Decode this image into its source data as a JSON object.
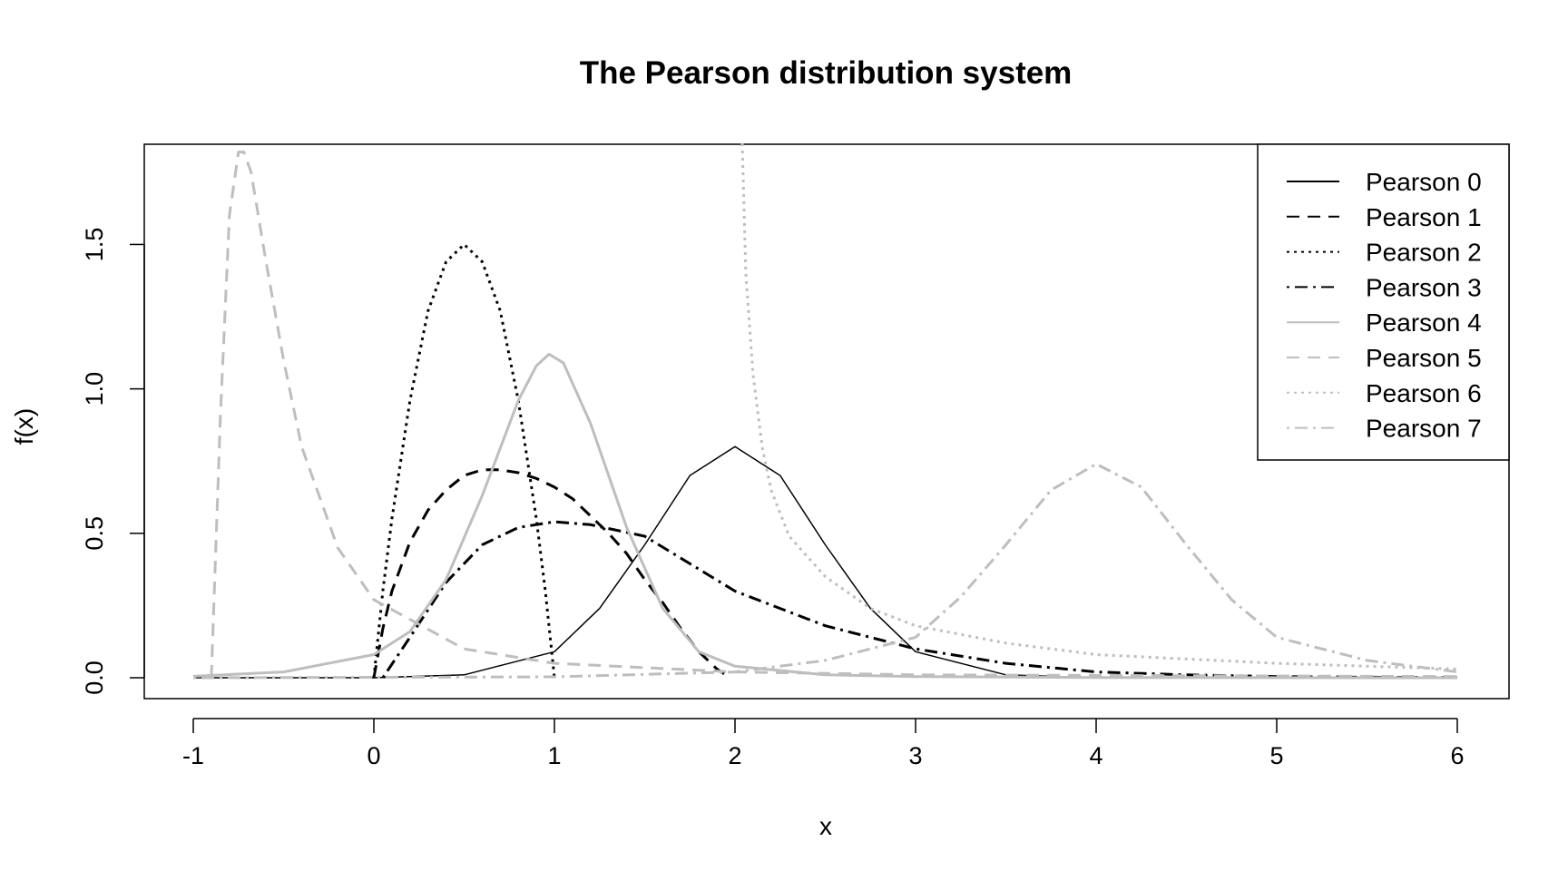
{
  "chart_data": {
    "type": "line",
    "title": "The Pearson distribution system",
    "xlabel": "x",
    "ylabel": "f(x)",
    "xlim": [
      -1,
      6
    ],
    "ylim": [
      0,
      1.85
    ],
    "x_ticks": [
      -1,
      0,
      1,
      2,
      3,
      4,
      5,
      6
    ],
    "y_ticks": [
      0.0,
      0.5,
      1.0,
      1.5
    ],
    "x_tick_labels": [
      "-1",
      "0",
      "1",
      "2",
      "3",
      "4",
      "5",
      "6"
    ],
    "y_tick_labels": [
      "0.0",
      "0.5",
      "1.0",
      "1.5"
    ],
    "grid": false,
    "legend_position": "top-right",
    "series": [
      {
        "name": "Pearson 0",
        "color": "#000000",
        "dash": "solid",
        "width": 1.5,
        "x": [
          -1,
          0,
          0.5,
          1,
          1.25,
          1.5,
          1.75,
          2,
          2.25,
          2.5,
          2.75,
          3,
          3.5,
          4,
          6
        ],
        "y": [
          0,
          0,
          0.01,
          0.09,
          0.24,
          0.46,
          0.7,
          0.8,
          0.7,
          0.46,
          0.24,
          0.09,
          0.01,
          0,
          0
        ]
      },
      {
        "name": "Pearson 1",
        "color": "#000000",
        "dash": "dashed",
        "width": 3,
        "x": [
          0,
          0.05,
          0.1,
          0.2,
          0.3,
          0.4,
          0.5,
          0.6,
          0.7,
          0.8,
          0.9,
          1.0,
          1.1,
          1.2,
          1.3,
          1.4,
          1.5,
          1.6,
          1.7,
          1.8,
          1.9,
          1.97
        ],
        "y": [
          0,
          0.17,
          0.3,
          0.47,
          0.58,
          0.65,
          0.7,
          0.72,
          0.72,
          0.71,
          0.69,
          0.66,
          0.62,
          0.56,
          0.5,
          0.43,
          0.34,
          0.26,
          0.17,
          0.09,
          0.03,
          0
        ]
      },
      {
        "name": "Pearson 2",
        "color": "#000000",
        "dash": "dotted",
        "width": 3,
        "x": [
          0,
          0.05,
          0.1,
          0.2,
          0.3,
          0.4,
          0.5,
          0.6,
          0.7,
          0.8,
          0.9,
          0.95,
          1.0
        ],
        "y": [
          0,
          0.3,
          0.55,
          0.96,
          1.27,
          1.44,
          1.5,
          1.44,
          1.27,
          0.96,
          0.55,
          0.3,
          0
        ]
      },
      {
        "name": "Pearson 3",
        "color": "#000000",
        "dash": "dashdot",
        "width": 3,
        "x": [
          0.05,
          0.2,
          0.4,
          0.6,
          0.8,
          1.0,
          1.2,
          1.5,
          2.0,
          2.5,
          3.0,
          3.5,
          4.0,
          4.5,
          5.0,
          5.5,
          6.0
        ],
        "y": [
          0,
          0.14,
          0.33,
          0.46,
          0.52,
          0.54,
          0.53,
          0.49,
          0.3,
          0.18,
          0.1,
          0.05,
          0.02,
          0.01,
          0.004,
          0.002,
          0.001
        ]
      },
      {
        "name": "Pearson 4",
        "color": "#bebebe",
        "dash": "solid",
        "width": 3,
        "x": [
          -1,
          -0.5,
          0,
          0.2,
          0.4,
          0.6,
          0.8,
          0.9,
          0.97,
          1.05,
          1.2,
          1.4,
          1.6,
          1.8,
          2.0,
          2.5,
          3.0,
          4.0,
          6.0
        ],
        "y": [
          0.005,
          0.02,
          0.08,
          0.16,
          0.34,
          0.63,
          0.96,
          1.08,
          1.12,
          1.09,
          0.88,
          0.52,
          0.24,
          0.09,
          0.04,
          0.01,
          0.004,
          0.001,
          0
        ]
      },
      {
        "name": "Pearson 5",
        "color": "#bebebe",
        "dash": "dashed",
        "width": 3,
        "x": [
          -0.9,
          -0.85,
          -0.8,
          -0.75,
          -0.72,
          -0.68,
          -0.6,
          -0.5,
          -0.4,
          -0.2,
          0,
          0.5,
          1,
          2,
          3,
          6
        ],
        "y": [
          0,
          0.9,
          1.6,
          1.82,
          1.82,
          1.75,
          1.45,
          1.1,
          0.8,
          0.45,
          0.27,
          0.1,
          0.05,
          0.02,
          0.01,
          0.004
        ]
      },
      {
        "name": "Pearson 6",
        "color": "#bebebe",
        "dash": "dotted",
        "width": 3,
        "x": [
          2.04,
          2.06,
          2.1,
          2.15,
          2.2,
          2.3,
          2.5,
          2.75,
          3.0,
          3.5,
          4.0,
          4.5,
          5.0,
          6.0
        ],
        "y": [
          1.85,
          1.4,
          1.05,
          0.8,
          0.65,
          0.49,
          0.35,
          0.24,
          0.18,
          0.12,
          0.08,
          0.065,
          0.05,
          0.03
        ]
      },
      {
        "name": "Pearson 7",
        "color": "#bebebe",
        "dash": "dashdot",
        "width": 3,
        "x": [
          -1,
          1,
          2,
          2.5,
          3,
          3.25,
          3.5,
          3.75,
          4.0,
          4.25,
          4.5,
          4.75,
          5.0,
          5.5,
          6.0
        ],
        "y": [
          0,
          0.003,
          0.02,
          0.06,
          0.14,
          0.28,
          0.46,
          0.65,
          0.74,
          0.66,
          0.46,
          0.27,
          0.14,
          0.06,
          0.02
        ]
      }
    ]
  }
}
